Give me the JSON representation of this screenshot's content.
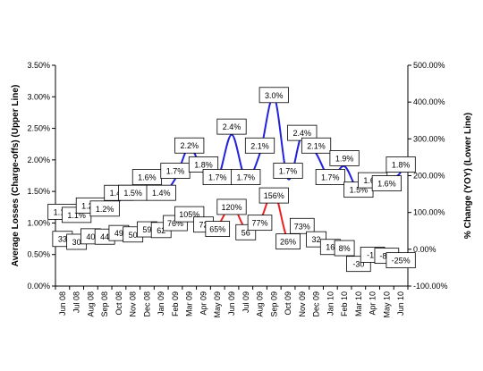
{
  "chart_data": {
    "type": "line",
    "title": "",
    "categories": [
      "Jun 08",
      "Jul 08",
      "Aug 08",
      "Sep 08",
      "Oct 08",
      "Nov 08",
      "Dec 08",
      "Jan 09",
      "Feb 09",
      "Mar 09",
      "Apr 09",
      "May 09",
      "Jun 09",
      "Jul 09",
      "Aug 09",
      "Sep 09",
      "Oct 09",
      "Nov 09",
      "Dec 09",
      "Jan 10",
      "Feb 10",
      "Mar 10",
      "Apr 10",
      "May 10",
      "Jun 10"
    ],
    "y_left": {
      "label": "Average Losses (Charge-offs) (Upper Line)",
      "ylim": [
        0,
        3.5
      ],
      "ticks": [
        "0.00%",
        "0.50%",
        "1.00%",
        "1.50%",
        "2.00%",
        "2.50%",
        "3.00%",
        "3.50%"
      ]
    },
    "y_right": {
      "label": "% Change (YOY) (Lower Line)",
      "ylim": [
        -100,
        500
      ],
      "ticks": [
        "-100.00%",
        "0.00%",
        "100.00%",
        "200.00%",
        "300.00%",
        "400.00%",
        "500.00%"
      ]
    },
    "series": [
      {
        "axis": "left",
        "color": "#2222dd",
        "values": [
          1.05,
          1.1,
          1.15,
          1.2,
          1.35,
          1.45,
          1.6,
          1.45,
          1.7,
          2.2,
          1.8,
          1.7,
          2.4,
          1.7,
          2.1,
          3.0,
          1.7,
          2.4,
          2.1,
          1.7,
          1.9,
          1.5,
          1.55,
          1.6,
          1.8
        ],
        "labels": [
          "1.1%",
          "1.1%",
          "1.2%",
          "1.2%",
          "1.4%",
          "1.5%",
          "1.6%",
          "1.4%",
          "1.7%",
          "2.2%",
          "1.8%",
          "1.7%",
          "2.4%",
          "1.7%",
          "2.1%",
          "3.0%",
          "1.7%",
          "2.4%",
          "2.1%",
          "1.7%",
          "1.9%",
          "1.5%",
          "1.6%",
          "1.6%",
          "1.8%"
        ]
      },
      {
        "axis": "right",
        "color": "#ee2222",
        "values": [
          33,
          30,
          40,
          44,
          49,
          50,
          59,
          62,
          76,
          105,
          72,
          65,
          120,
          56,
          77,
          156,
          26,
          73,
          32,
          16,
          8,
          -30,
          -10,
          -8,
          -25
        ],
        "labels": [
          "33",
          "30",
          "40",
          "44",
          "49",
          "50",
          "59",
          "62",
          "76%",
          "105%",
          "72",
          "65%",
          "120%",
          "56",
          "77%",
          "156%",
          "26%",
          "73%",
          "32",
          "16",
          "8%",
          "-30",
          "-10",
          "-8%",
          "-25%"
        ]
      }
    ],
    "grid": false,
    "legend": "none"
  }
}
